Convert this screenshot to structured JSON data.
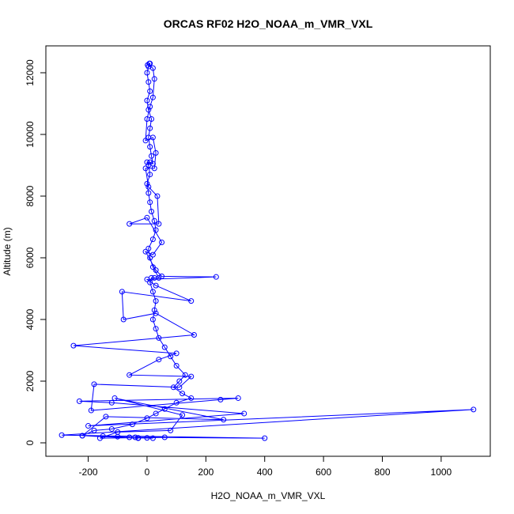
{
  "chart_data": {
    "type": "line",
    "title": "ORCAS RF02 H2O_NOAA_m_VMR_VXL",
    "x_label": "H2O_NOAA_m_VMR_VXL",
    "y_label": "Altitude (m)",
    "xlim": [
      -344,
      1167
    ],
    "ylim": [
      -436,
      12872
    ],
    "xticks": [
      -200,
      0,
      200,
      400,
      600,
      800,
      1000
    ],
    "yticks": [
      0,
      2000,
      4000,
      6000,
      8000,
      10000,
      12000
    ],
    "color": "#0000ff",
    "markers": true,
    "x": [
      20,
      -30,
      -60,
      -100,
      -150,
      -220,
      -180,
      -120,
      -50,
      0,
      30,
      60,
      100,
      150,
      120,
      90,
      110,
      130,
      100,
      80,
      60,
      40,
      30,
      20,
      25,
      30,
      20,
      10,
      15,
      25,
      40,
      20,
      10,
      5,
      20,
      30,
      25,
      15,
      10,
      5,
      0,
      10,
      5,
      0,
      10,
      20,
      15,
      10,
      5,
      10,
      15,
      5,
      0,
      10,
      5,
      0,
      5,
      10,
      8,
      2,
      20,
      25,
      20,
      10,
      0,
      -5,
      20,
      30,
      25,
      -5,
      5,
      35,
      40,
      -60,
      0,
      50,
      20,
      -5,
      30,
      50,
      235,
      0,
      30,
      150,
      -85,
      -80,
      30,
      160,
      -250,
      100,
      40,
      -60,
      150,
      110,
      -180,
      -190,
      250,
      310,
      -230,
      -120,
      330,
      -200,
      1110,
      -290,
      400,
      -40,
      0,
      60,
      -160,
      -100,
      80,
      120,
      -110,
      260,
      -140,
      -220,
      -30
    ],
    "values": [
      150,
      160,
      180,
      200,
      220,
      230,
      400,
      450,
      600,
      800,
      950,
      1100,
      1300,
      1450,
      1600,
      1800,
      2000,
      2200,
      2500,
      2800,
      3100,
      3400,
      3700,
      4000,
      4300,
      4600,
      4900,
      5200,
      5350,
      5350,
      5350,
      5700,
      6000,
      6300,
      6600,
      6900,
      7200,
      7500,
      7800,
      8100,
      8400,
      8700,
      9000,
      9100,
      9100,
      9050,
      9300,
      9600,
      9900,
      10200,
      10500,
      10800,
      11100,
      11400,
      11700,
      12000,
      12200,
      12300,
      12300,
      12250,
      12150,
      11800,
      11200,
      10900,
      10500,
      9800,
      9900,
      9400,
      8900,
      8900,
      8300,
      8000,
      7100,
      7100,
      7300,
      6500,
      6100,
      6200,
      5600,
      5400,
      5380,
      5300,
      5100,
      4600,
      4900,
      4000,
      4200,
      3500,
      3150,
      2900,
      2700,
      2200,
      2150,
      1800,
      1900,
      1050,
      1400,
      1450,
      1350,
      1300,
      950,
      550,
      1080,
      250,
      150,
      180,
      160,
      180,
      150,
      350,
      400,
      900,
      1450,
      750,
      850,
      230,
      150
    ]
  }
}
